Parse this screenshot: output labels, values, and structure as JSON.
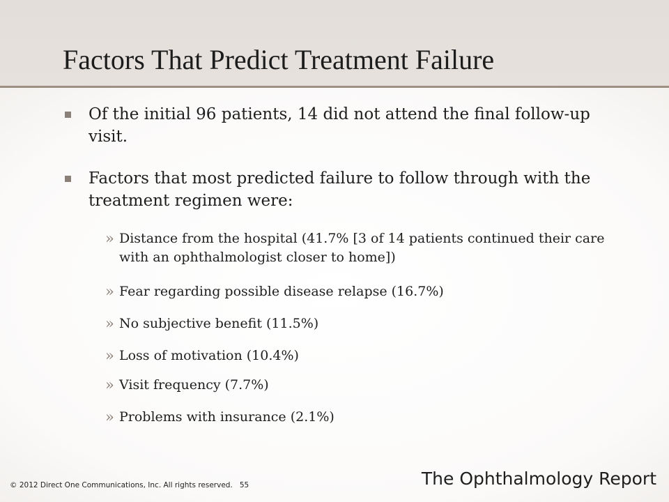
{
  "slide": {
    "title": "Factors That Predict Treatment Failure",
    "bullets": [
      {
        "text": "Of the initial 96 patients, 14 did not attend the final follow-up visit."
      },
      {
        "text": "Factors that most predicted failure to follow through with the treatment regimen were:",
        "sub_marker": "»",
        "subitems": [
          "Distance from the hospital (41.7% [3 of 14 patients continued their care with an ophthalmologist closer to home])",
          "Fear regarding possible disease relapse (16.7%)",
          "No subjective benefit (11.5%)",
          "Loss of motivation (10.4%)",
          "Visit frequency (7.7%)",
          "Problems with insurance (2.1%)"
        ]
      }
    ]
  },
  "footer": {
    "copyright": "© 2012 Direct One Communications, Inc. All rights reserved.",
    "page_number": "55",
    "brand": "The Ophthalmology Report"
  },
  "colors": {
    "bullet": "#8b8078",
    "title_rule": "#9e8f83",
    "text": "#1e1e1e"
  }
}
